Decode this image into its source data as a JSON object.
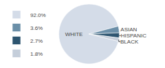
{
  "chart_data": {
    "type": "pie",
    "categories": [
      "WHITE",
      "ASIAN",
      "HISPANIC",
      "BLACK"
    ],
    "values": [
      92.0,
      3.6,
      2.7,
      1.8
    ],
    "value_labels": [
      "92.0%",
      "3.6%",
      "2.7%",
      "1.8%"
    ],
    "colors": [
      "#d4dce8",
      "#6b8fa8",
      "#2d5570",
      "#c5ceda"
    ],
    "legend": "left"
  }
}
